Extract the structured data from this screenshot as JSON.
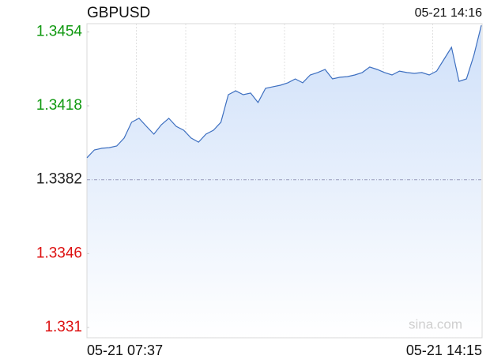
{
  "chart_data": {
    "type": "line",
    "title": "GBPUSD",
    "updated": "05-21 14:16",
    "start_label": "05-21 07:37",
    "end_label": "05-21 14:15",
    "watermark": "sina.com",
    "values": [
      1.33927,
      1.33965,
      1.33973,
      1.33976,
      1.33984,
      1.34023,
      1.341,
      1.34119,
      1.3408,
      1.34042,
      1.34088,
      1.34119,
      1.3408,
      1.34061,
      1.34023,
      1.34003,
      1.34042,
      1.34061,
      1.341,
      1.34234,
      1.34253,
      1.34234,
      1.34242,
      1.34196,
      1.34265,
      1.34273,
      1.3428,
      1.34292,
      1.34311,
      1.34292,
      1.3433,
      1.34342,
      1.34357,
      1.34311,
      1.34319,
      1.34322,
      1.3433,
      1.34342,
      1.34369,
      1.34357,
      1.34342,
      1.3433,
      1.34349,
      1.34342,
      1.34338,
      1.34342,
      1.3433,
      1.34349,
      1.34407,
      1.34465,
      1.34299,
      1.34311,
      1.34426,
      1.34572
    ],
    "color": "#3d6fc0",
    "fill": "#cfe0f9",
    "ylim": [
      1.3305,
      1.3458
    ],
    "yticks": [
      1.331,
      1.3346,
      1.3382,
      1.3418,
      1.3454
    ],
    "reference": 1.3382,
    "up_color": "#119911",
    "down_color": "#dd1111",
    "flat_color": "#222222"
  }
}
